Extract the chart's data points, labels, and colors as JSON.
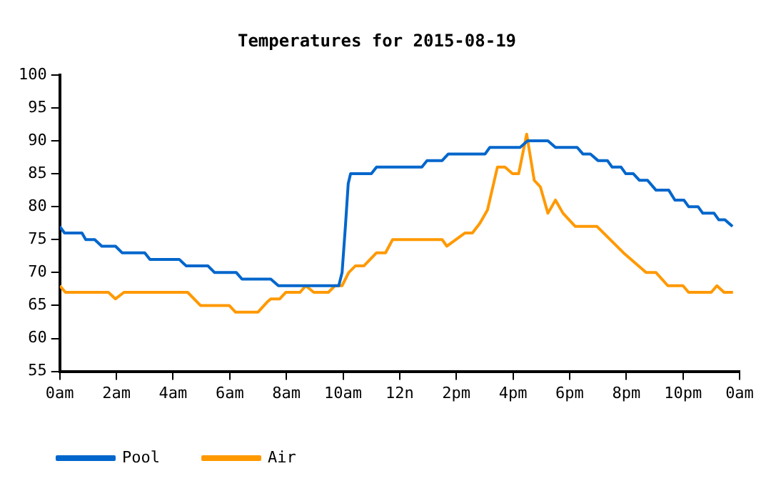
{
  "chart_data": {
    "type": "line",
    "title": "Temperatures for 2015-08-19",
    "xlim": [
      "2015-08-19T00:00",
      "2015-08-20T00:00"
    ],
    "xticks": [
      {
        "value": "2015-08-19T00:00",
        "label": "0am"
      },
      {
        "value": "2015-08-19T02:00",
        "label": "2am"
      },
      {
        "value": "2015-08-19T04:00",
        "label": "4am"
      },
      {
        "value": "2015-08-19T06:00",
        "label": "6am"
      },
      {
        "value": "2015-08-19T08:00",
        "label": "8am"
      },
      {
        "value": "2015-08-19T10:00",
        "label": "10am"
      },
      {
        "value": "2015-08-19T12:00",
        "label": "12n"
      },
      {
        "value": "2015-08-19T14:00",
        "label": "2pm"
      },
      {
        "value": "2015-08-19T16:00",
        "label": "4pm"
      },
      {
        "value": "2015-08-19T18:00",
        "label": "6pm"
      },
      {
        "value": "2015-08-19T20:00",
        "label": "8pm"
      },
      {
        "value": "2015-08-19T22:00",
        "label": "10pm"
      },
      {
        "value": "2015-08-20T00:00",
        "label": "0am"
      }
    ],
    "ylim": [
      55,
      100
    ],
    "yticks": [
      55,
      60,
      65,
      70,
      75,
      80,
      85,
      90,
      95,
      100
    ],
    "grid": false,
    "legend": "bottom left",
    "marker": "none",
    "line_style": "solid",
    "series": [
      {
        "name": "Pool",
        "color": "#0066cc",
        "x": [
          "2015-08-19T00:00",
          "2015-08-19T00:10",
          "2015-08-19T00:47",
          "2015-08-19T00:55",
          "2015-08-19T01:14",
          "2015-08-19T01:29",
          "2015-08-19T01:58",
          "2015-08-19T02:12",
          "2015-08-19T03:00",
          "2015-08-19T03:11",
          "2015-08-19T04:13",
          "2015-08-19T04:28",
          "2015-08-19T05:14",
          "2015-08-19T05:28",
          "2015-08-19T06:14",
          "2015-08-19T06:26",
          "2015-08-19T07:27",
          "2015-08-19T07:43",
          "2015-08-19T09:51",
          "2015-08-19T09:58",
          "2015-08-19T10:05",
          "2015-08-19T10:11",
          "2015-08-19T10:16",
          "2015-08-19T11:00",
          "2015-08-19T11:11",
          "2015-08-19T12:47",
          "2015-08-19T12:58",
          "2015-08-19T13:30",
          "2015-08-19T13:43",
          "2015-08-19T15:01",
          "2015-08-19T15:11",
          "2015-08-19T16:15",
          "2015-08-19T16:31",
          "2015-08-19T17:14",
          "2015-08-19T17:30",
          "2015-08-19T18:16",
          "2015-08-19T18:28",
          "2015-08-19T18:44",
          "2015-08-19T19:00",
          "2015-08-19T19:20",
          "2015-08-19T19:30",
          "2015-08-19T19:49",
          "2015-08-19T19:59",
          "2015-08-19T20:15",
          "2015-08-19T20:28",
          "2015-08-19T20:45",
          "2015-08-19T21:03",
          "2015-08-19T21:30",
          "2015-08-19T21:43",
          "2015-08-19T22:02",
          "2015-08-19T22:12",
          "2015-08-19T22:32",
          "2015-08-19T22:42",
          "2015-08-19T23:06",
          "2015-08-19T23:16",
          "2015-08-19T23:29",
          "2015-08-19T23:45"
        ],
        "values": [
          77,
          76,
          76,
          75,
          75,
          74,
          74,
          73,
          73,
          72,
          72,
          71,
          71,
          70,
          70,
          69,
          69,
          68,
          68,
          70,
          77,
          83.5,
          85,
          85,
          86,
          86,
          87,
          87,
          88,
          88,
          89,
          89,
          90,
          90,
          89,
          89,
          88,
          88,
          87,
          87,
          86,
          86,
          85,
          85,
          84,
          84,
          82.5,
          82.5,
          81,
          81,
          80,
          80,
          79,
          79,
          78,
          78,
          77
        ]
      },
      {
        "name": "Air",
        "color": "#ff9900",
        "x": [
          "2015-08-19T00:00",
          "2015-08-19T00:12",
          "2015-08-19T01:43",
          "2015-08-19T01:58",
          "2015-08-19T02:16",
          "2015-08-19T04:31",
          "2015-08-19T04:58",
          "2015-08-19T05:59",
          "2015-08-19T06:12",
          "2015-08-19T07:00",
          "2015-08-19T07:19",
          "2015-08-19T07:27",
          "2015-08-19T07:46",
          "2015-08-19T07:59",
          "2015-08-19T08:29",
          "2015-08-19T08:41",
          "2015-08-19T08:58",
          "2015-08-19T09:29",
          "2015-08-19T09:43",
          "2015-08-19T09:58",
          "2015-08-19T10:12",
          "2015-08-19T10:26",
          "2015-08-19T10:44",
          "2015-08-19T11:11",
          "2015-08-19T11:30",
          "2015-08-19T11:45",
          "2015-08-19T13:30",
          "2015-08-19T13:40",
          "2015-08-19T14:18",
          "2015-08-19T14:34",
          "2015-08-19T14:50",
          "2015-08-19T15:06",
          "2015-08-19T15:27",
          "2015-08-19T15:43",
          "2015-08-19T15:59",
          "2015-08-19T16:12",
          "2015-08-19T16:29",
          "2015-08-19T16:45",
          "2015-08-19T16:58",
          "2015-08-19T17:14",
          "2015-08-19T17:30",
          "2015-08-19T17:46",
          "2015-08-19T18:12",
          "2015-08-19T18:58",
          "2015-08-19T19:54",
          "2015-08-19T20:42",
          "2015-08-19T21:03",
          "2015-08-19T21:28",
          "2015-08-19T22:00",
          "2015-08-19T22:12",
          "2015-08-19T23:00",
          "2015-08-19T23:12",
          "2015-08-19T23:27",
          "2015-08-19T23:46"
        ],
        "values": [
          68,
          67,
          67,
          66,
          67,
          67,
          65,
          65,
          64,
          64,
          65.5,
          66,
          66,
          67,
          67,
          68,
          67,
          67,
          68,
          68,
          70,
          71,
          71,
          73,
          73,
          75,
          75,
          74,
          76,
          76,
          77.5,
          79.5,
          86,
          86,
          85,
          85,
          91,
          84,
          83,
          79,
          81,
          79,
          77,
          77,
          73,
          70,
          70,
          68,
          68,
          67,
          67,
          68,
          67,
          67
        ]
      }
    ]
  }
}
